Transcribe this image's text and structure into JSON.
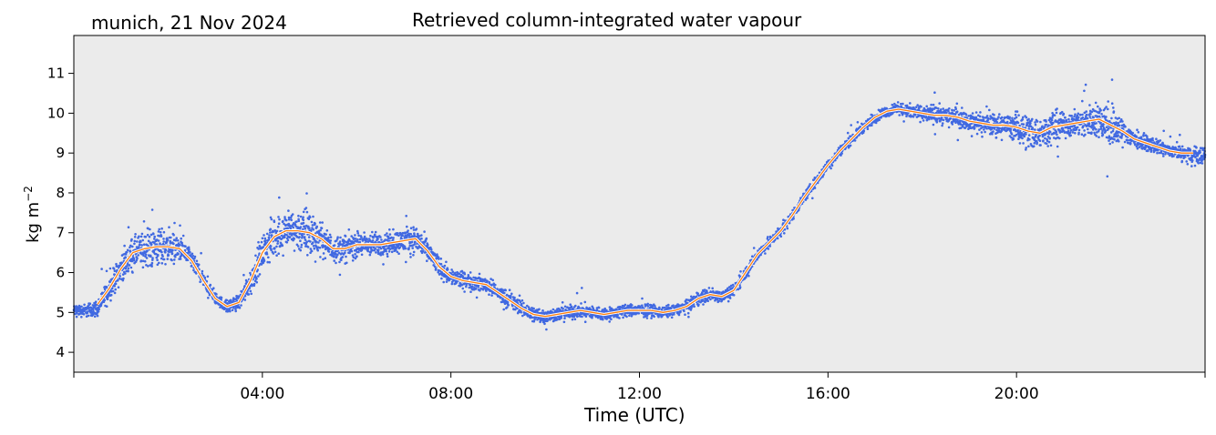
{
  "header": {
    "location_date": "munich, 21 Nov 2024",
    "title": "Retrieved column-integrated water vapour"
  },
  "chart_data": {
    "type": "line",
    "title": "Retrieved column-integrated water vapour",
    "annotation": "munich, 21 Nov 2024",
    "xlabel": "Time (UTC)",
    "ylabel_base": "kg m",
    "ylabel_exp": "−2",
    "ylabel": "kg m−2",
    "xlim_hours": [
      0,
      24
    ],
    "ylim": [
      3.5,
      11.95
    ],
    "x_ticks_hours": [
      4,
      8,
      12,
      16,
      20
    ],
    "x_tick_labels": [
      "04:00",
      "08:00",
      "12:00",
      "16:00",
      "20:00"
    ],
    "y_ticks": [
      4,
      5,
      6,
      7,
      8,
      9,
      10,
      11
    ],
    "y_tick_labels": [
      "4",
      "5",
      "6",
      "7",
      "8",
      "9",
      "10",
      "11"
    ],
    "grid": false,
    "plot_background": "#ebebeb",
    "series": [
      {
        "style": "scatter",
        "color": "#4169e1",
        "x_hours": [
          0.0,
          0.25,
          0.5,
          0.75,
          1.0,
          1.25,
          1.5,
          1.75,
          2.0,
          2.25,
          2.5,
          2.75,
          3.0,
          3.25,
          3.5,
          3.75,
          4.0,
          4.25,
          4.5,
          4.75,
          5.0,
          5.25,
          5.5,
          5.75,
          6.0,
          6.25,
          6.5,
          6.75,
          7.0,
          7.25,
          7.5,
          7.75,
          8.0,
          8.25,
          8.5,
          8.75,
          9.0,
          9.25,
          9.5,
          9.75,
          10.0,
          10.25,
          10.5,
          10.75,
          11.0,
          11.25,
          11.5,
          11.75,
          12.0,
          12.25,
          12.5,
          12.75,
          13.0,
          13.25,
          13.5,
          13.75,
          14.0,
          14.25,
          14.5,
          14.75,
          15.0,
          15.25,
          15.5,
          15.75,
          16.0,
          16.25,
          16.5,
          16.75,
          17.0,
          17.25,
          17.5,
          17.75,
          18.0,
          18.25,
          18.5,
          18.75,
          19.0,
          19.25,
          19.5,
          19.75,
          20.0,
          20.25,
          20.5,
          20.75,
          21.0,
          21.25,
          21.5,
          21.75,
          22.0,
          22.25,
          22.5,
          22.75,
          23.0,
          23.25,
          23.5,
          23.75,
          24.0
        ],
        "y_center": [
          5.05,
          5.05,
          5.1,
          5.6,
          6.1,
          6.5,
          6.6,
          6.65,
          6.65,
          6.6,
          6.3,
          5.8,
          5.35,
          5.15,
          5.25,
          5.8,
          6.5,
          6.9,
          7.05,
          7.05,
          7.0,
          6.85,
          6.6,
          6.6,
          6.7,
          6.7,
          6.7,
          6.75,
          6.8,
          6.85,
          6.55,
          6.15,
          5.9,
          5.8,
          5.75,
          5.7,
          5.5,
          5.3,
          5.1,
          4.95,
          4.9,
          4.95,
          5.0,
          5.05,
          5.0,
          4.95,
          5.0,
          5.05,
          5.05,
          5.05,
          5.0,
          5.05,
          5.15,
          5.35,
          5.45,
          5.4,
          5.55,
          6.0,
          6.45,
          6.75,
          7.05,
          7.45,
          7.9,
          8.3,
          8.7,
          9.05,
          9.35,
          9.65,
          9.9,
          10.05,
          10.1,
          10.05,
          10.0,
          9.95,
          9.95,
          9.9,
          9.8,
          9.75,
          9.7,
          9.7,
          9.65,
          9.55,
          9.5,
          9.65,
          9.7,
          9.75,
          9.8,
          9.85,
          9.7,
          9.55,
          9.35,
          9.25,
          9.15,
          9.05,
          9.0,
          8.95,
          8.95
        ],
        "spread": [
          0.2,
          0.22,
          0.3,
          0.4,
          0.5,
          0.55,
          0.6,
          0.75,
          0.6,
          0.4,
          0.35,
          0.25,
          0.2,
          0.22,
          0.28,
          0.45,
          0.55,
          0.8,
          0.6,
          0.75,
          1.0,
          0.55,
          0.45,
          0.5,
          0.45,
          0.45,
          0.4,
          0.4,
          0.45,
          0.5,
          0.4,
          0.35,
          0.3,
          0.3,
          0.3,
          0.28,
          0.28,
          0.3,
          0.25,
          0.3,
          0.25,
          0.22,
          0.25,
          0.25,
          0.25,
          0.22,
          0.22,
          0.22,
          0.22,
          0.22,
          0.2,
          0.2,
          0.2,
          0.22,
          0.25,
          0.2,
          0.2,
          0.22,
          0.2,
          0.2,
          0.2,
          0.18,
          0.18,
          0.18,
          0.18,
          0.18,
          0.18,
          0.18,
          0.18,
          0.18,
          0.18,
          0.25,
          0.25,
          0.35,
          0.3,
          0.35,
          0.3,
          0.3,
          0.4,
          0.35,
          0.5,
          0.7,
          0.5,
          0.6,
          0.45,
          0.45,
          0.55,
          0.6,
          0.9,
          0.4,
          0.3,
          0.25,
          0.25,
          0.22,
          0.22,
          0.3,
          0.3
        ]
      },
      {
        "style": "line",
        "color": "#ff7f0e",
        "x_hours": [
          0.5,
          0.75,
          1.0,
          1.25,
          1.5,
          1.75,
          2.0,
          2.25,
          2.5,
          2.75,
          3.0,
          3.25,
          3.5,
          3.75,
          4.0,
          4.25,
          4.5,
          4.75,
          5.0,
          5.25,
          5.5,
          5.75,
          6.0,
          6.25,
          6.5,
          6.75,
          7.0,
          7.25,
          7.5,
          7.75,
          8.0,
          8.25,
          8.5,
          8.75,
          9.0,
          9.25,
          9.5,
          9.75,
          10.0,
          10.25,
          10.5,
          10.75,
          11.0,
          11.25,
          11.5,
          11.75,
          12.0,
          12.25,
          12.5,
          12.75,
          13.0,
          13.25,
          13.5,
          13.75,
          14.0,
          14.25,
          14.5,
          14.75,
          15.0,
          15.25,
          15.5,
          15.75,
          16.0,
          16.25,
          16.5,
          16.75,
          17.0,
          17.25,
          17.5,
          17.75,
          18.0,
          18.25,
          18.5,
          18.75,
          19.0,
          19.25,
          19.5,
          19.75,
          20.0,
          20.25,
          20.5,
          20.75,
          21.0,
          21.25,
          21.5,
          21.75,
          22.0,
          22.25,
          22.5,
          22.75,
          23.0,
          23.25,
          23.5,
          23.75
        ],
        "y": [
          5.2,
          5.6,
          6.1,
          6.5,
          6.6,
          6.65,
          6.65,
          6.6,
          6.3,
          5.8,
          5.35,
          5.15,
          5.25,
          5.8,
          6.5,
          6.9,
          7.05,
          7.05,
          7.0,
          6.85,
          6.6,
          6.6,
          6.7,
          6.7,
          6.7,
          6.75,
          6.8,
          6.85,
          6.55,
          6.15,
          5.9,
          5.8,
          5.75,
          5.7,
          5.5,
          5.3,
          5.1,
          4.95,
          4.9,
          4.95,
          5.0,
          5.05,
          5.0,
          4.95,
          5.0,
          5.05,
          5.05,
          5.05,
          5.0,
          5.05,
          5.15,
          5.35,
          5.45,
          5.4,
          5.55,
          6.0,
          6.45,
          6.75,
          7.05,
          7.45,
          7.9,
          8.3,
          8.7,
          9.05,
          9.35,
          9.65,
          9.9,
          10.05,
          10.1,
          10.05,
          10.0,
          9.95,
          9.95,
          9.9,
          9.8,
          9.75,
          9.7,
          9.7,
          9.65,
          9.55,
          9.5,
          9.65,
          9.7,
          9.75,
          9.8,
          9.85,
          9.7,
          9.55,
          9.35,
          9.25,
          9.15,
          9.05,
          9.0,
          9.0
        ]
      }
    ]
  }
}
